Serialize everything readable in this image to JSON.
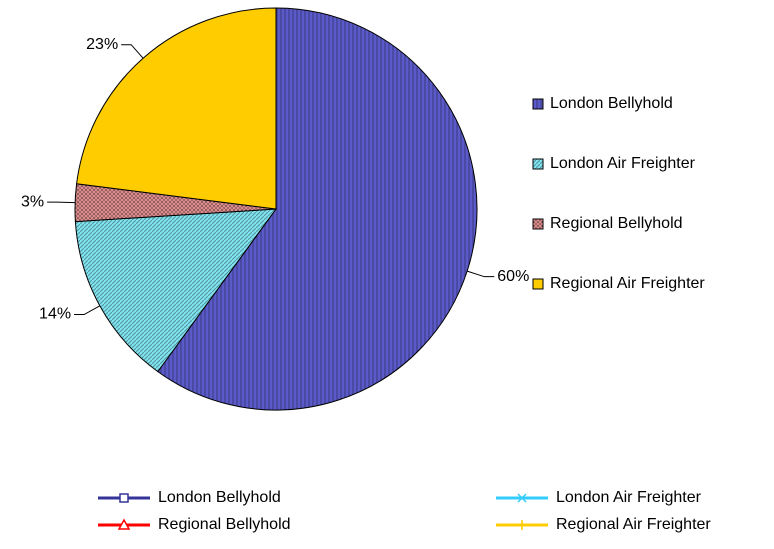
{
  "chart_data": {
    "type": "pie",
    "categories": [
      "London Bellyhold",
      "London Air Freighter",
      "Regional Bellyhold",
      "Regional Air Freighter"
    ],
    "values": [
      60,
      14,
      3,
      23
    ],
    "value_labels": [
      "60%",
      "14%",
      "3%",
      "23%"
    ],
    "colors": [
      "#5a5ac8",
      "#7fe3f0",
      "#f29a9a",
      "#ffcc00"
    ],
    "fill_patterns": [
      "vertical",
      "diagonal",
      "crosshatch",
      "solid"
    ],
    "legend": "right",
    "line_legend": {
      "position": "bottom",
      "colors": [
        "#333399",
        "#33ccff",
        "#ff0000",
        "#ffcc00"
      ],
      "markers": [
        "square",
        "x",
        "triangle",
        "plus"
      ]
    }
  }
}
